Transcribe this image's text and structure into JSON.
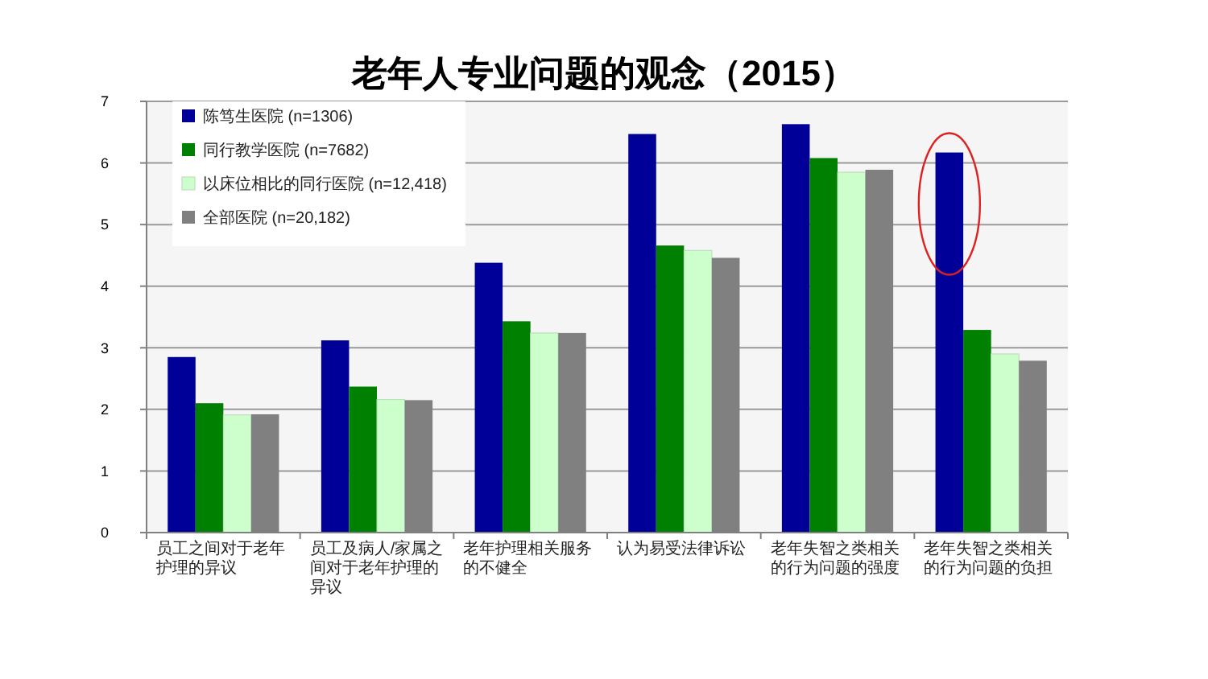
{
  "chart_data": {
    "type": "bar",
    "title": "老年人专业问题的观念（2015）",
    "categories": [
      "员工之间对于老年护理的异议",
      "员工及病人/家属之间对于老年护理的异议",
      "老年护理相关服务的不健全",
      "认为易受法律诉讼",
      "老年失智之类相关的行为问题的强度",
      "老年失智之类相关的行为问题的负担"
    ],
    "series": [
      {
        "name": "陈笃生医院 (n=1306)",
        "color": "#000099",
        "values": [
          2.85,
          3.12,
          4.38,
          6.47,
          6.63,
          6.17
        ]
      },
      {
        "name": "同行教学医院 (n=7682)",
        "color": "#008000",
        "values": [
          2.1,
          2.37,
          3.43,
          4.66,
          6.08,
          3.29
        ]
      },
      {
        "name": "以床位相比的同行医院 (n=12,418)",
        "color": "#ccffcc",
        "values": [
          1.91,
          2.16,
          3.24,
          4.58,
          5.85,
          2.9
        ]
      },
      {
        "name": "全部医院 (n=20,182)",
        "color": "#808080",
        "values": [
          1.92,
          2.15,
          3.24,
          4.46,
          5.89,
          2.79
        ]
      }
    ],
    "ylim": [
      0,
      7
    ],
    "yticks": [
      0,
      1,
      2,
      3,
      4,
      5,
      6,
      7
    ],
    "grid": "y",
    "legend": "top left"
  }
}
